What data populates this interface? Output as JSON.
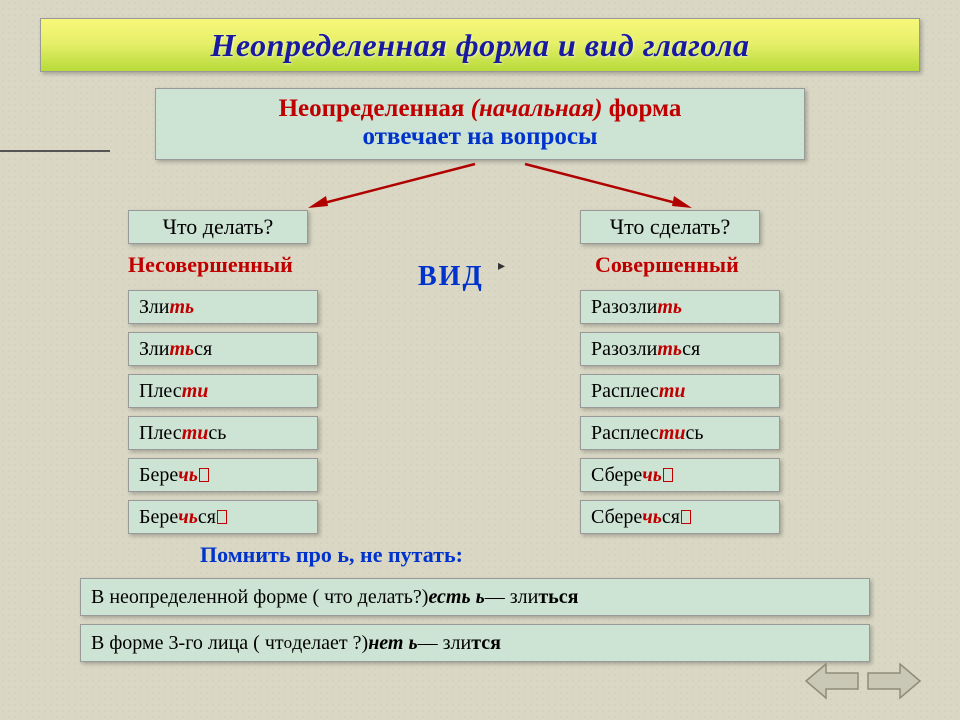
{
  "title": "Неопределенная форма и вид глагола",
  "intro": {
    "line1_part1": "Неопределенная ",
    "line1_ital": "(начальная)",
    "line1_part2": " форма",
    "line2": "отвечает на вопросы"
  },
  "questions": {
    "q_left": "Что делать?",
    "q_right": "Что сделать?"
  },
  "aspect": {
    "left": "Несовершенный",
    "right": "Совершенный",
    "vid": "ВИД"
  },
  "words_left": [
    {
      "stem": "Зли",
      "suf": "ть",
      "tail": "",
      "zero": false
    },
    {
      "stem": "Зли",
      "suf": "ть",
      "tail": "ся",
      "zero": false
    },
    {
      "stem": "Плес",
      "suf": "ти",
      "tail": "",
      "zero": false
    },
    {
      "stem": "Плес",
      "suf": "ти",
      "tail": "сь",
      "zero": false
    },
    {
      "stem": "Бере",
      "suf": "чь",
      "tail": "",
      "zero": true
    },
    {
      "stem": "Бере",
      "suf": "чь",
      "tail": "ся",
      "zero": true
    }
  ],
  "words_right": [
    {
      "stem": "Разозли",
      "suf": "ть",
      "tail": "",
      "zero": false
    },
    {
      "stem": "Разозли",
      "suf": "ть",
      "tail": "ся",
      "zero": false
    },
    {
      "stem": "Расплес",
      "suf": "ти",
      "tail": "",
      "zero": false
    },
    {
      "stem": "Расплес",
      "suf": "ти",
      "tail": "сь",
      "zero": false
    },
    {
      "stem": "Сбере",
      "suf": "чь",
      "tail": "",
      "zero": true
    },
    {
      "stem": "Сбере",
      "suf": "чь",
      "tail": "ся ",
      "zero": true
    }
  ],
  "note": "Помнить про ь, не путать:",
  "rule1": {
    "p1": "В неопределенной форме ( что делать?) ",
    "em": "есть ь",
    "p2": " — зли",
    "bold": "ться"
  },
  "rule2": {
    "p1": "В форме 3-го лица ( чт",
    "p1b": "о",
    "p1c": "  делает ?) ",
    "em": "нет ь",
    "p2": " — зли",
    "bold": "тся"
  },
  "colors": {
    "title_bg_top": "#f7f77a",
    "title_bg_bot": "#b7db3a",
    "box_bg": "#cde3d4",
    "red": "#c00000",
    "blue": "#0033cc",
    "arrow": "#b00000",
    "nav_fill": "#c9c7b5",
    "nav_stroke": "#8f8d79"
  }
}
